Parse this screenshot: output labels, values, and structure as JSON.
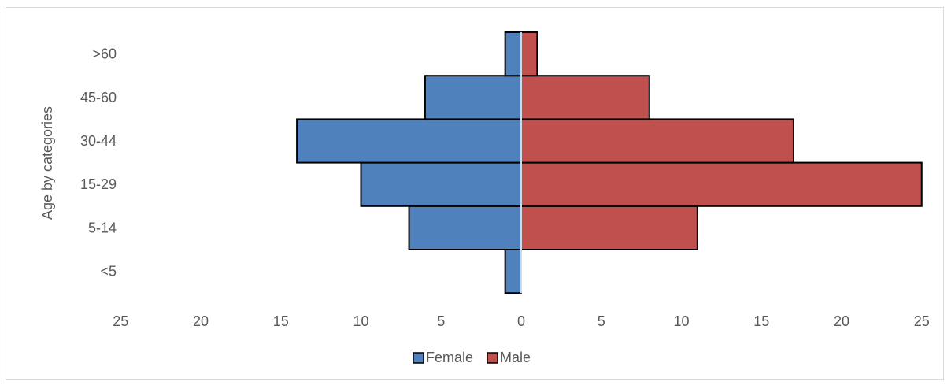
{
  "chart_data": {
    "type": "bar",
    "orientation": "horizontal",
    "title": "",
    "xlabel": "",
    "ylabel": "Age by categories",
    "categories": [
      "<5",
      "5-14",
      "15-29",
      "30-44",
      "45-60",
      ">60"
    ],
    "series": [
      {
        "name": "Female",
        "values": [
          1,
          7,
          10,
          14,
          6,
          1
        ],
        "color": "#4f81bd",
        "side": "left"
      },
      {
        "name": "Male",
        "values": [
          0,
          11,
          25,
          17,
          8,
          1
        ],
        "color": "#c0504d",
        "side": "right"
      }
    ],
    "xlim": [
      -25,
      25
    ],
    "x_tick_labels": [
      "25",
      "20",
      "15",
      "10",
      "5",
      "0",
      "5",
      "10",
      "15",
      "20",
      "25"
    ],
    "grid": false,
    "legend_position": "bottom"
  }
}
